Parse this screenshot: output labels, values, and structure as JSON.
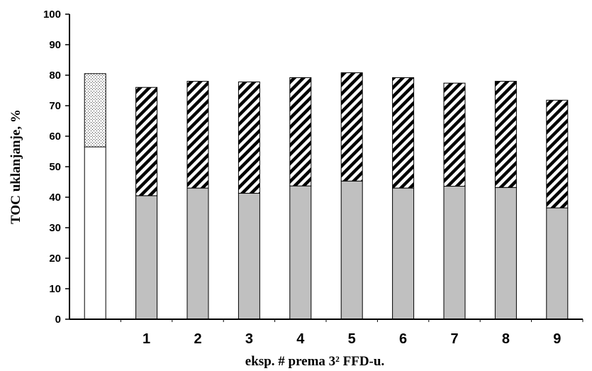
{
  "chart_data": {
    "type": "bar",
    "stacked": true,
    "title": "",
    "xlabel": "eksp. # prema 3² FFD-u.",
    "ylabel": "TOC uklanjanje, %",
    "ylim": [
      0,
      100
    ],
    "yticks": [
      "0",
      "10",
      "20",
      "30",
      "40",
      "50",
      "60",
      "70",
      "80",
      "90",
      "100"
    ],
    "categories": [
      "",
      "1",
      "2",
      "3",
      "4",
      "5",
      "6",
      "7",
      "8",
      "9"
    ],
    "grid": false,
    "legend": "none",
    "series": [
      {
        "fill": "#c0c0c0",
        "special_first_fill": "#ffffff",
        "values": [
          56.5,
          40.5,
          43,
          41.3,
          43.7,
          45.3,
          43,
          43.6,
          43.2,
          36.5
        ]
      },
      {
        "pattern_first": "dots",
        "pattern_rest": "diagonal-stripes",
        "values": [
          24,
          35.5,
          35,
          36.5,
          35.5,
          35.5,
          36.2,
          33.8,
          34.8,
          35.3
        ]
      }
    ],
    "colors": {
      "axis": "#000000",
      "bar_edge": "#000000",
      "lower_bar": "#c0c0c0",
      "reference_lower_bar": "#ffffff"
    }
  }
}
